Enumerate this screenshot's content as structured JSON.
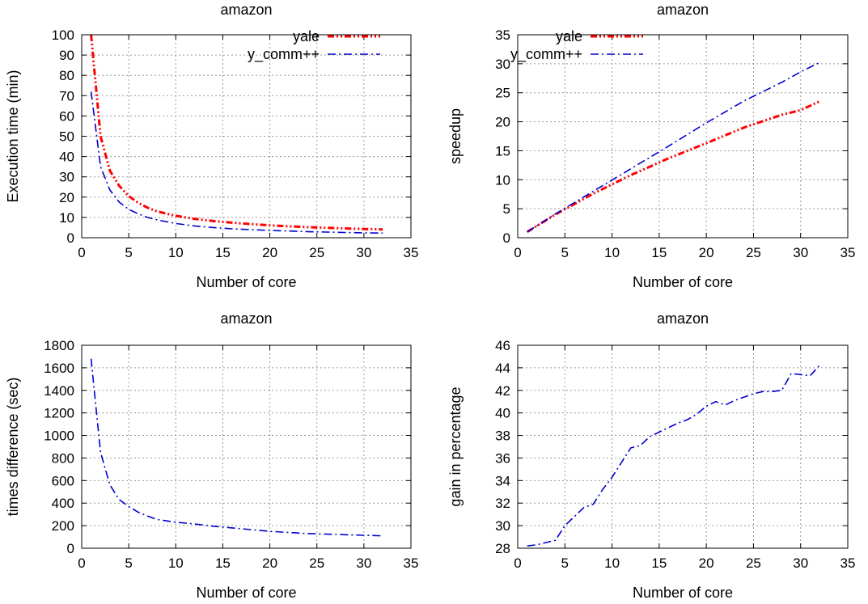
{
  "colors": {
    "yale": "#ff0000",
    "y_comm": "#0000cc",
    "grid": "#9a9a9a",
    "frame": "#000000"
  },
  "chart_data": [
    {
      "type": "line",
      "title": "amazon",
      "xlabel": "Number of core",
      "ylabel": "Execution time (min)",
      "xlim": [
        0,
        35
      ],
      "ylim": [
        0,
        100
      ],
      "xticks": [
        0,
        5,
        10,
        15,
        20,
        25,
        30,
        35
      ],
      "yticks": [
        0,
        10,
        20,
        30,
        40,
        50,
        60,
        70,
        80,
        90,
        100
      ],
      "grid": true,
      "legend": "top-right",
      "series": [
        {
          "name": "yale",
          "color": "#ff0000",
          "style": "dash-dot-dot",
          "x": [
            1,
            2,
            3,
            4,
            5,
            6,
            7,
            8,
            10,
            12,
            14,
            16,
            18,
            20,
            22,
            24,
            26,
            28,
            30,
            32
          ],
          "y": [
            100,
            50,
            33,
            25.5,
            20.5,
            17.2,
            14.8,
            13,
            10.8,
            9.3,
            8.2,
            7.4,
            6.7,
            6.1,
            5.6,
            5.2,
            4.9,
            4.6,
            4.3,
            4.1
          ]
        },
        {
          "name": "y_comm++",
          "color": "#0000cc",
          "style": "dash-dot",
          "x": [
            1,
            2,
            3,
            4,
            5,
            6,
            7,
            8,
            10,
            12,
            14,
            16,
            18,
            20,
            22,
            24,
            26,
            28,
            30,
            32
          ],
          "y": [
            72,
            35,
            23.5,
            17.5,
            14,
            11.8,
            10,
            8.8,
            7,
            5.8,
            5,
            4.4,
            4,
            3.6,
            3.3,
            3,
            2.8,
            2.6,
            2.4,
            2.3
          ]
        }
      ]
    },
    {
      "type": "line",
      "title": "amazon",
      "xlabel": "Number of core",
      "ylabel": "speedup",
      "xlim": [
        0,
        35
      ],
      "ylim": [
        0,
        35
      ],
      "xticks": [
        0,
        5,
        10,
        15,
        20,
        25,
        30,
        35
      ],
      "yticks": [
        0,
        5,
        10,
        15,
        20,
        25,
        30,
        35
      ],
      "grid": true,
      "legend": "top-left",
      "series": [
        {
          "name": "yale",
          "color": "#ff0000",
          "style": "dash-dot-dot",
          "x": [
            1,
            4,
            8,
            12,
            16,
            20,
            24,
            28,
            30,
            32
          ],
          "y": [
            1,
            4,
            7.6,
            10.8,
            13.7,
            16.3,
            19,
            21.2,
            22,
            23.5
          ]
        },
        {
          "name": "y_comm++",
          "color": "#0000cc",
          "style": "dash-dot",
          "x": [
            1,
            4,
            8,
            12,
            16,
            20,
            24,
            28,
            30,
            32
          ],
          "y": [
            1,
            4.1,
            8,
            11.9,
            15.8,
            19.8,
            23.6,
            26.8,
            28.6,
            30.2
          ]
        }
      ]
    },
    {
      "type": "line",
      "title": "amazon",
      "xlabel": "Number of core",
      "ylabel": "times difference (sec)",
      "xlim": [
        0,
        35
      ],
      "ylim": [
        0,
        1800
      ],
      "xticks": [
        0,
        5,
        10,
        15,
        20,
        25,
        30,
        35
      ],
      "yticks": [
        0,
        200,
        400,
        600,
        800,
        1000,
        1200,
        1400,
        1600,
        1800
      ],
      "grid": true,
      "legend": "none",
      "series": [
        {
          "color": "#0000cc",
          "style": "dash-dot",
          "x": [
            1,
            2,
            3,
            4,
            5,
            6,
            7,
            8,
            10,
            12,
            14,
            16,
            18,
            20,
            22,
            24,
            26,
            28,
            30,
            32
          ],
          "y": [
            1680,
            850,
            560,
            430,
            370,
            320,
            285,
            255,
            230,
            215,
            195,
            180,
            165,
            150,
            140,
            130,
            125,
            120,
            115,
            110
          ]
        }
      ]
    },
    {
      "type": "line",
      "title": "amazon",
      "xlabel": "Number of core",
      "ylabel": "gain in percentage",
      "xlim": [
        0,
        35
      ],
      "ylim": [
        28,
        46
      ],
      "xticks": [
        0,
        5,
        10,
        15,
        20,
        25,
        30,
        35
      ],
      "yticks": [
        28,
        30,
        32,
        34,
        36,
        38,
        40,
        42,
        44,
        46
      ],
      "grid": true,
      "legend": "none",
      "series": [
        {
          "color": "#0000cc",
          "style": "dash-dot",
          "x": [
            1,
            2,
            3,
            4,
            5,
            6,
            7,
            8,
            9,
            10,
            11,
            12,
            13,
            14,
            15,
            16,
            17,
            18,
            19,
            20,
            21,
            22,
            23,
            24,
            25,
            26,
            27,
            28,
            29,
            30,
            31,
            32
          ],
          "y": [
            28.2,
            28.3,
            28.5,
            28.7,
            30,
            30.8,
            31.6,
            31.9,
            33.2,
            34.3,
            35.6,
            36.9,
            37.1,
            37.9,
            38.3,
            38.7,
            39.1,
            39.4,
            39.9,
            40.6,
            41,
            40.7,
            41.1,
            41.4,
            41.7,
            41.9,
            41.9,
            42,
            43.5,
            43.4,
            43.3,
            44.2
          ]
        }
      ]
    }
  ]
}
